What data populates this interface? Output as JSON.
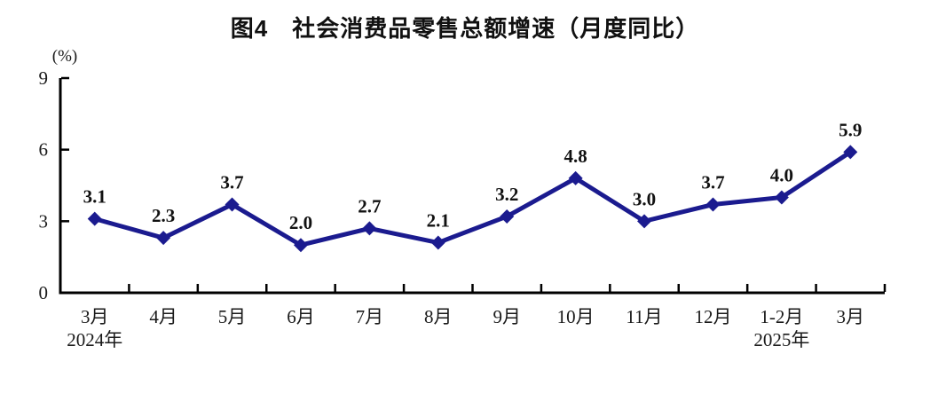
{
  "title": "图4　社会消费品零售总额增速（月度同比）",
  "chart_data": {
    "type": "line",
    "title": "图4　社会消费品零售总额增速（月度同比）",
    "categories": [
      "3月",
      "4月",
      "5月",
      "6月",
      "7月",
      "8月",
      "9月",
      "10月",
      "11月",
      "12月",
      "1-2月",
      "3月"
    ],
    "category_sublabels": {
      "0": "2024年",
      "10": "2025年"
    },
    "values": [
      3.1,
      2.3,
      3.7,
      2.0,
      2.7,
      2.1,
      3.2,
      4.8,
      3.0,
      3.7,
      4.0,
      5.9
    ],
    "data_labels": [
      "3.1",
      "2.3",
      "3.7",
      "2.0",
      "2.7",
      "2.1",
      "3.2",
      "4.8",
      "3.0",
      "3.7",
      "4.0",
      "5.9"
    ],
    "ylabel": "(%)",
    "yticks": [
      0,
      3,
      6,
      9
    ],
    "ylim": [
      0,
      9
    ],
    "grid": false,
    "legend": "none",
    "marker": "diamond",
    "line_color": "#1b1b8f",
    "axis_color": "#000000"
  }
}
